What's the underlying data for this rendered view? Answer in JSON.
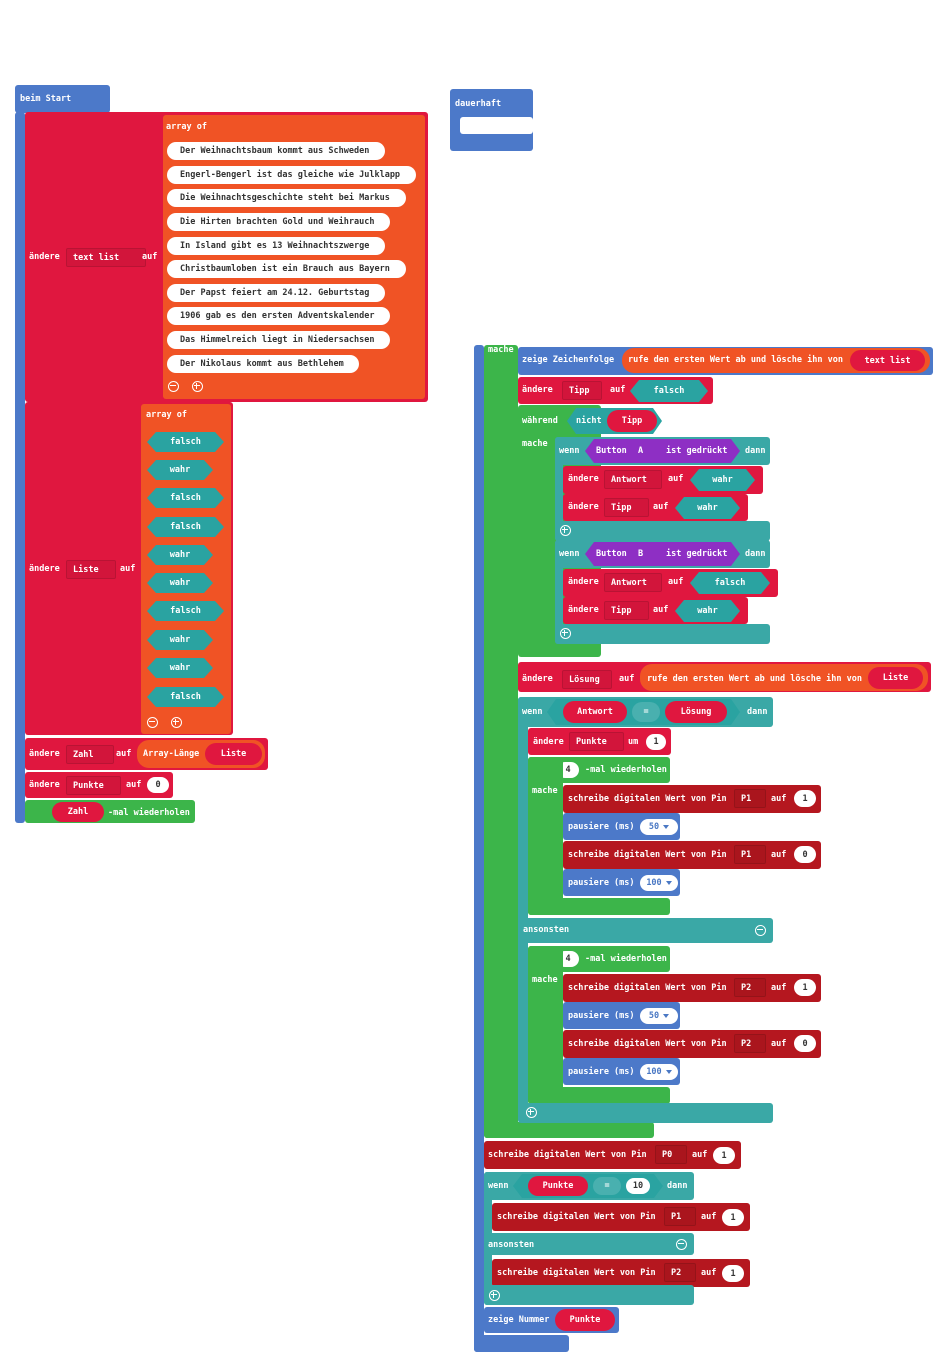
{
  "colors": {
    "basic": "#4c79c9",
    "variables": "#e0173f",
    "arrays": "#f05325",
    "logic": "#3aa8a6",
    "boolean": "#2aa3a1",
    "loops": "#3cb54a",
    "pins": "#b5171f",
    "input": "#8e2fc4"
  },
  "on_start": {
    "label": "beim Start",
    "set_text_list": {
      "kw": "ändere",
      "var": "text list",
      "to": "auf",
      "array_of": "array of",
      "items": [
        "Der Weihnachtsbaum kommt aus Schweden",
        "Engerl-Bengerl ist das gleiche wie Julklapp",
        "Die Weihnachtsgeschichte steht bei Markus",
        "Die Hirten brachten Gold und Weihrauch",
        "In Island gibt es 13 Weihnachtszwerge",
        "Christbaumloben ist ein Brauch aus Bayern",
        "Der Papst feiert am 24.12. Geburtstag",
        "1906 gab es den ersten Adventskalender",
        "Das Himmelreich liegt in Niedersachsen",
        "Der Nikolaus kommt aus Bethlehem"
      ]
    },
    "set_liste": {
      "kw": "ändere",
      "var": "Liste",
      "to": "auf",
      "array_of": "array of",
      "items": [
        "falsch",
        "wahr",
        "falsch",
        "falsch",
        "wahr",
        "wahr",
        "falsch",
        "wahr",
        "wahr",
        "falsch"
      ]
    },
    "set_zahl": {
      "kw": "ändere",
      "var": "Zahl",
      "to": "auf",
      "fn": "Array-Länge",
      "arg": "Liste"
    },
    "set_punkte": {
      "kw": "ändere",
      "var": "Punkte",
      "to": "auf",
      "value": "0"
    },
    "repeat": {
      "var": "Zahl",
      "label": "-mal wiederholen"
    }
  },
  "forever": {
    "label": "dauerhaft"
  },
  "loop": {
    "do": "mache",
    "show_string": {
      "label": "zeige Zeichenfolge",
      "fn": "rufe den ersten Wert ab und lösche ihn von",
      "arg": "text list"
    },
    "set_tipp": {
      "kw": "ändere",
      "var": "Tipp",
      "to": "auf",
      "value": "falsch"
    },
    "while": {
      "label": "während",
      "not": "nicht",
      "var": "Tipp",
      "do": "mache"
    },
    "if_a": {
      "if": "wenn",
      "button": "Button",
      "which": "A",
      "pressed": "ist gedrückt",
      "then": "dann",
      "row1": {
        "kw": "ändere",
        "var": "Antwort",
        "to": "auf",
        "value": "wahr"
      },
      "row2": {
        "kw": "ändere",
        "var": "Tipp",
        "to": "auf",
        "value": "wahr"
      }
    },
    "if_b": {
      "if": "wenn",
      "button": "Button",
      "which": "B",
      "pressed": "ist gedrückt",
      "then": "dann",
      "row1": {
        "kw": "ändere",
        "var": "Antwort",
        "to": "auf",
        "value": "falsch"
      },
      "row2": {
        "kw": "ändere",
        "var": "Tipp",
        "to": "auf",
        "value": "wahr"
      }
    },
    "set_loesung": {
      "kw": "ändere",
      "var": "Lösung",
      "to": "auf",
      "fn": "rufe den ersten Wert ab und lösche ihn von",
      "arg": "Liste"
    },
    "if_answer": {
      "if": "wenn",
      "left": "Antwort",
      "op": "=",
      "right": "Lösung",
      "then": "dann",
      "else": "ansonsten",
      "change": {
        "kw": "ändere",
        "var": "Punkte",
        "by": "um",
        "value": "1"
      },
      "repeat1": {
        "times": "4",
        "label": "-mal wiederholen",
        "do": "mache",
        "rows": [
          {
            "label": "schreibe digitalen Wert von Pin",
            "pin": "P1",
            "to": "auf",
            "value": "1"
          },
          {
            "label": "pausiere (ms)",
            "value": "50"
          },
          {
            "label": "schreibe digitalen Wert von Pin",
            "pin": "P1",
            "to": "auf",
            "value": "0"
          },
          {
            "label": "pausiere (ms)",
            "value": "100"
          }
        ]
      },
      "repeat2": {
        "times": "4",
        "label": "-mal wiederholen",
        "do": "mache",
        "rows": [
          {
            "label": "schreibe digitalen Wert von Pin",
            "pin": "P2",
            "to": "auf",
            "value": "1"
          },
          {
            "label": "pausiere (ms)",
            "value": "50"
          },
          {
            "label": "schreibe digitalen Wert von Pin",
            "pin": "P2",
            "to": "auf",
            "value": "0"
          },
          {
            "label": "pausiere (ms)",
            "value": "100"
          }
        ]
      }
    },
    "write_p0": {
      "label": "schreibe digitalen Wert von Pin",
      "pin": "P0",
      "to": "auf",
      "value": "1"
    },
    "if_points": {
      "if": "wenn",
      "var": "Punkte",
      "op": "=",
      "value": "10",
      "then": "dann",
      "else": "ansonsten",
      "row1": {
        "label": "schreibe digitalen Wert von Pin",
        "pin": "P1",
        "to": "auf",
        "value": "1"
      },
      "row2": {
        "label": "schreibe digitalen Wert von Pin",
        "pin": "P2",
        "to": "auf",
        "value": "1"
      }
    },
    "show_number": {
      "label": "zeige Nummer",
      "var": "Punkte"
    }
  }
}
